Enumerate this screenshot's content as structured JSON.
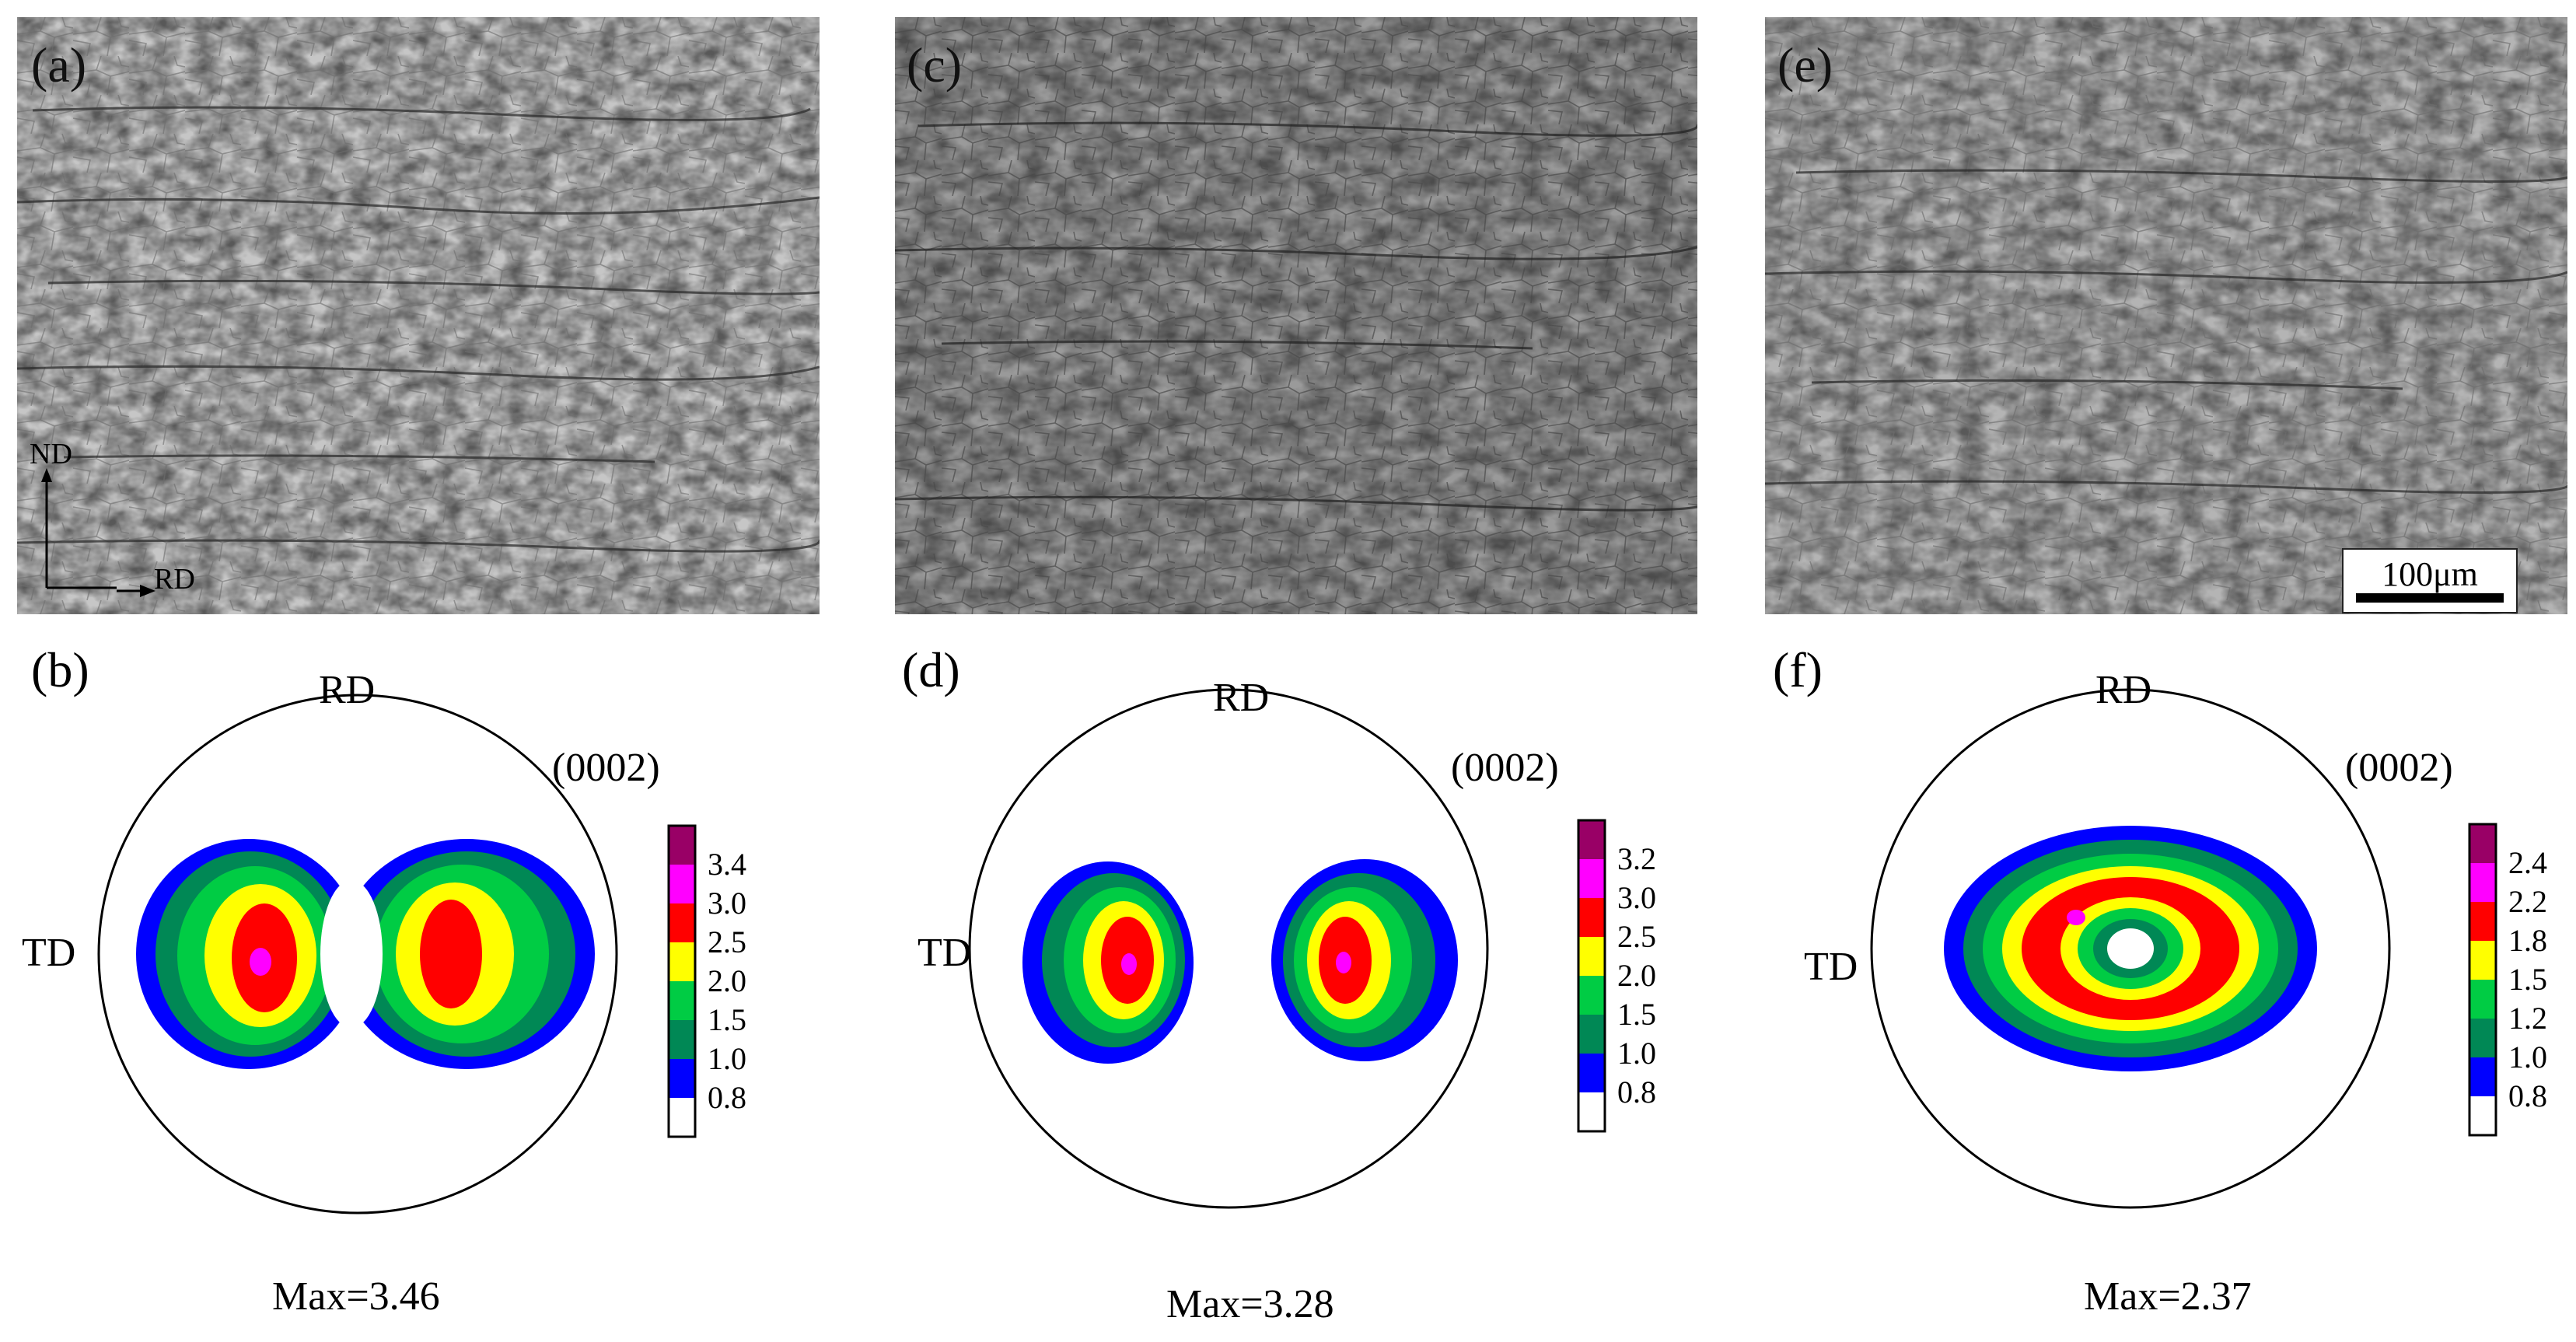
{
  "panels": {
    "micro": [
      {
        "label": "(a)"
      },
      {
        "label": "(c)"
      },
      {
        "label": "(e)"
      }
    ],
    "pole": [
      {
        "label": "(b)",
        "max_text": "Max=3.46",
        "legend": [
          "3.4",
          "3.0",
          "2.5",
          "2.0",
          "1.5",
          "1.0",
          "0.8"
        ],
        "layout": "split"
      },
      {
        "label": "(d)",
        "max_text": "Max=3.28",
        "legend": [
          "3.2",
          "3.0",
          "2.5",
          "2.0",
          "1.5",
          "1.0",
          "0.8"
        ],
        "layout": "split-wide"
      },
      {
        "label": "(f)",
        "max_text": "Max=2.37",
        "legend": [
          "2.4",
          "2.2",
          "1.8",
          "1.5",
          "1.2",
          "1.0",
          "0.8"
        ],
        "layout": "ring"
      }
    ]
  },
  "axes": {
    "nd": "ND",
    "rd": "RD"
  },
  "pole_text": {
    "rd": "RD",
    "td": "TD",
    "plane": "(0002)"
  },
  "scalebar": {
    "label": "100μm"
  },
  "colors": {
    "levels": [
      "#990066",
      "#ff00ff",
      "#ff0000",
      "#ffff00",
      "#00cc44",
      "#008855",
      "#0000ff",
      "#ffffff"
    ]
  }
}
